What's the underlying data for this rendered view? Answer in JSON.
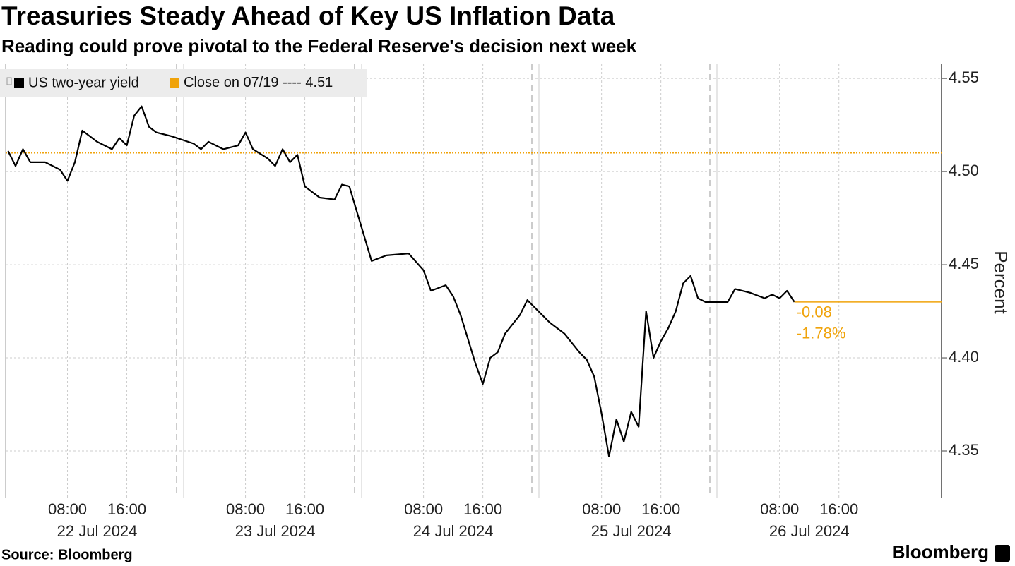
{
  "chart_data": {
    "type": "line",
    "title": "Treasuries Steady Ahead of Key US Inflation Data",
    "subtitle": "Reading could prove pivotal to the Federal Reserve's decision next week",
    "ylabel": "Percent",
    "source": "Source: Bloomberg",
    "brand": "Bloomberg",
    "x": [
      "2024-07-22T00:00",
      "2024-07-22T01:00",
      "2024-07-22T02:00",
      "2024-07-22T03:00",
      "2024-07-22T05:00",
      "2024-07-22T07:00",
      "2024-07-22T08:00",
      "2024-07-22T09:00",
      "2024-07-22T10:00",
      "2024-07-22T11:00",
      "2024-07-22T12:00",
      "2024-07-22T14:00",
      "2024-07-22T15:00",
      "2024-07-22T16:00",
      "2024-07-22T17:00",
      "2024-07-22T18:00",
      "2024-07-22T19:00",
      "2024-07-22T20:00",
      "2024-07-22T22:00",
      "2024-07-23T01:00",
      "2024-07-23T02:00",
      "2024-07-23T03:00",
      "2024-07-23T05:00",
      "2024-07-23T07:00",
      "2024-07-23T08:00",
      "2024-07-23T09:00",
      "2024-07-23T11:00",
      "2024-07-23T12:00",
      "2024-07-23T13:00",
      "2024-07-23T14:00",
      "2024-07-23T15:00",
      "2024-07-23T16:00",
      "2024-07-23T18:00",
      "2024-07-23T20:00",
      "2024-07-23T21:00",
      "2024-07-23T22:00",
      "2024-07-24T01:00",
      "2024-07-24T03:00",
      "2024-07-24T06:00",
      "2024-07-24T08:00",
      "2024-07-24T09:00",
      "2024-07-24T11:00",
      "2024-07-24T12:00",
      "2024-07-24T13:00",
      "2024-07-24T14:00",
      "2024-07-24T15:00",
      "2024-07-24T16:00",
      "2024-07-24T17:00",
      "2024-07-24T18:00",
      "2024-07-24T19:00",
      "2024-07-24T20:00",
      "2024-07-24T21:00",
      "2024-07-24T22:00",
      "2024-07-25T01:00",
      "2024-07-25T03:00",
      "2024-07-25T05:00",
      "2024-07-25T06:00",
      "2024-07-25T07:00",
      "2024-07-25T08:00",
      "2024-07-25T09:00",
      "2024-07-25T10:00",
      "2024-07-25T11:00",
      "2024-07-25T12:00",
      "2024-07-25T13:00",
      "2024-07-25T14:00",
      "2024-07-25T15:00",
      "2024-07-25T16:00",
      "2024-07-25T17:00",
      "2024-07-25T18:00",
      "2024-07-25T19:00",
      "2024-07-25T20:00",
      "2024-07-25T21:00",
      "2024-07-25T22:00",
      "2024-07-26T01:00",
      "2024-07-26T02:00",
      "2024-07-26T04:00",
      "2024-07-26T06:00",
      "2024-07-26T07:00",
      "2024-07-26T08:00",
      "2024-07-26T09:00",
      "2024-07-26T10:00"
    ],
    "series": [
      {
        "name": "US two-year yield",
        "color": "#000000",
        "values": [
          4.511,
          4.503,
          4.512,
          4.505,
          4.505,
          4.501,
          4.495,
          4.505,
          4.522,
          4.519,
          4.516,
          4.512,
          4.518,
          4.514,
          4.53,
          4.535,
          4.524,
          4.521,
          4.519,
          4.515,
          4.512,
          4.516,
          4.512,
          4.514,
          4.521,
          4.512,
          4.507,
          4.503,
          4.512,
          4.505,
          4.509,
          4.492,
          4.486,
          4.485,
          4.493,
          4.492,
          4.452,
          4.455,
          4.456,
          4.447,
          4.436,
          4.439,
          4.433,
          4.423,
          4.41,
          4.397,
          4.386,
          4.4,
          4.403,
          4.413,
          4.418,
          4.423,
          4.431,
          4.419,
          4.413,
          4.403,
          4.399,
          4.39,
          4.37,
          4.347,
          4.367,
          4.355,
          4.371,
          4.363,
          4.425,
          4.4,
          4.409,
          4.416,
          4.425,
          4.44,
          4.444,
          4.432,
          4.43,
          4.43,
          4.437,
          4.435,
          4.432,
          4.434,
          4.432,
          4.436,
          4.43
        ]
      }
    ],
    "close": {
      "label": "Close on 07/19 ----",
      "value": 4.51,
      "color": "#f0a30a"
    },
    "change_labels": [
      "-0.08",
      "-1.78%"
    ],
    "xlim": [
      "2024-07-21T23:40",
      "2024-07-27T05:50"
    ],
    "xticks": [
      {
        "value": "2024-07-22T08:00",
        "label": "08:00"
      },
      {
        "value": "2024-07-22T16:00",
        "label": "16:00"
      },
      {
        "value": "2024-07-23T08:00",
        "label": "08:00"
      },
      {
        "value": "2024-07-23T16:00",
        "label": "16:00"
      },
      {
        "value": "2024-07-24T08:00",
        "label": "08:00"
      },
      {
        "value": "2024-07-24T16:00",
        "label": "16:00"
      },
      {
        "value": "2024-07-25T08:00",
        "label": "08:00"
      },
      {
        "value": "2024-07-25T16:00",
        "label": "16:00"
      },
      {
        "value": "2024-07-26T08:00",
        "label": "08:00"
      },
      {
        "value": "2024-07-26T16:00",
        "label": "16:00"
      }
    ],
    "date_labels": [
      {
        "value": "2024-07-22T12:00",
        "label": "22 Jul 2024"
      },
      {
        "value": "2024-07-23T12:00",
        "label": "23 Jul 2024"
      },
      {
        "value": "2024-07-24T12:00",
        "label": "24 Jul 2024"
      },
      {
        "value": "2024-07-25T12:00",
        "label": "25 Jul 2024"
      },
      {
        "value": "2024-07-26T12:00",
        "label": "26 Jul 2024"
      }
    ],
    "ylim": [
      4.325,
      4.558
    ],
    "yticks": [
      4.55,
      {
        "value": 4.5,
        "label": "4.50"
      },
      4.45,
      {
        "value": 4.4,
        "label": "4.40"
      },
      4.35
    ],
    "grid": true
  }
}
